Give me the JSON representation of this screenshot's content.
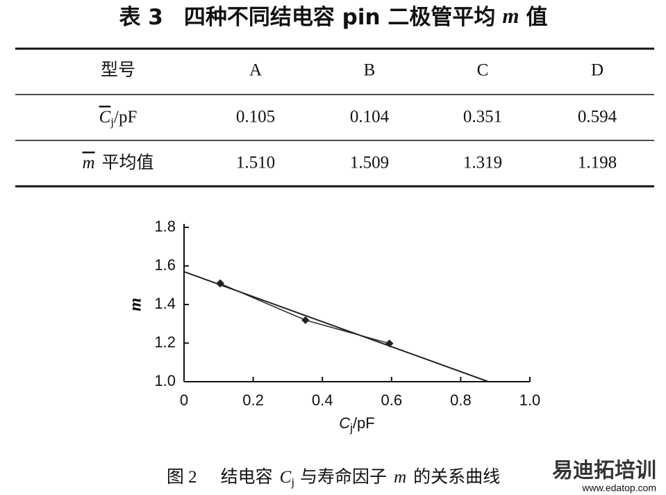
{
  "title": {
    "number": "表 3",
    "text": "四种不同结电容 pin 二极管平均",
    "symbol": "m",
    "suffix": "值"
  },
  "table": {
    "header": [
      "型号",
      "A",
      "B",
      "C",
      "D"
    ],
    "rows": [
      {
        "label": {
          "symbol": "C",
          "subscript": "j",
          "unit": "/pF"
        },
        "cells": [
          "0.105",
          "0.104",
          "0.351",
          "0.594"
        ]
      },
      {
        "label": {
          "symbol": "m",
          "unit": "平均值"
        },
        "cells": [
          "1.510",
          "1.509",
          "1.319",
          "1.198"
        ]
      }
    ]
  },
  "chart_data": {
    "type": "scatter",
    "x": [
      0.105,
      0.104,
      0.351,
      0.594
    ],
    "values": [
      1.51,
      1.509,
      1.319,
      1.198
    ],
    "color": "#222",
    "trend_line": {
      "x": [
        0,
        0.88
      ],
      "values": [
        1.57,
        1.0
      ]
    },
    "xlim": [
      0,
      1
    ],
    "xticks": [
      0,
      0.2,
      0.4,
      0.6,
      0.8,
      {
        "value": 1,
        "label": "1.0"
      }
    ],
    "ylim": [
      1,
      1.8
    ],
    "yticks": [
      {
        "value": 1,
        "label": "1.0"
      },
      1.2,
      1.4,
      1.6,
      1.8
    ],
    "xlabel": {
      "symbol": "C",
      "subscript": "j",
      "unit": "/pF"
    },
    "ylabel": "m"
  },
  "caption": {
    "number": "图 2",
    "text1": "结电容",
    "symbol": "C",
    "subscript": "j",
    "text2": "与寿命因子",
    "symbol2": "m",
    "text3": "的关系曲线"
  },
  "watermark": {
    "brand": "易迪拓培训",
    "url": "www.edatop.com"
  }
}
